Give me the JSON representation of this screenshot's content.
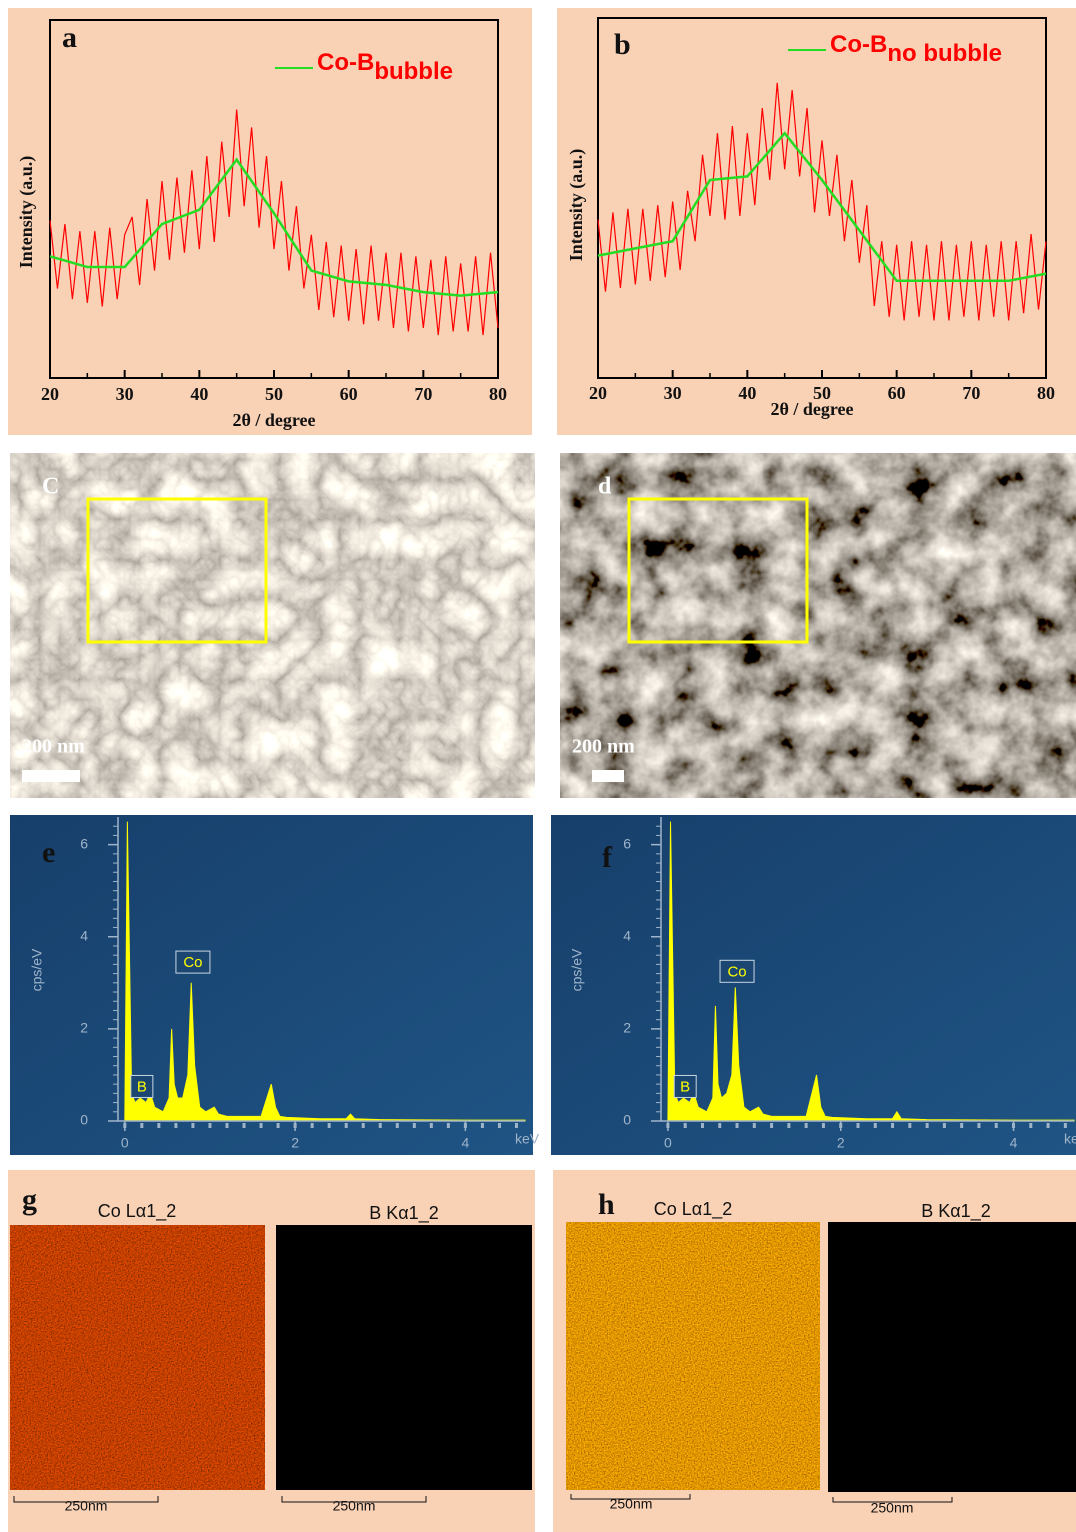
{
  "chart_data": [
    {
      "type": "line",
      "panel_label": "a",
      "x_label": "2θ / degree",
      "y_label": "Intensity (a.u.)",
      "xlim": [
        20,
        80
      ],
      "xticks": [
        20,
        30,
        40,
        50,
        60,
        70,
        80
      ],
      "ylim": [
        0,
        100
      ],
      "grid": false,
      "series": [
        {
          "color": "#ff0000",
          "x": [
            20,
            21,
            22,
            23,
            24,
            25,
            26,
            27,
            28,
            29,
            30,
            31,
            32,
            33,
            34,
            35,
            36,
            37,
            38,
            39,
            40,
            41,
            42,
            43,
            44,
            45,
            46,
            47,
            48,
            49,
            50,
            51,
            52,
            53,
            54,
            55,
            56,
            57,
            58,
            59,
            60,
            61,
            62,
            63,
            64,
            65,
            66,
            67,
            68,
            69,
            70,
            71,
            72,
            73,
            74,
            75,
            76,
            77,
            78,
            79,
            80
          ],
          "values": [
            44,
            25,
            43,
            22,
            41,
            21,
            41,
            20,
            42,
            22,
            40,
            45,
            26,
            50,
            30,
            55,
            33,
            56,
            35,
            58,
            36,
            62,
            38,
            66,
            45,
            75,
            48,
            70,
            42,
            62,
            36,
            55,
            30,
            48,
            25,
            40,
            19,
            38,
            17,
            37,
            16,
            36,
            15,
            37,
            16,
            35,
            14,
            35,
            13,
            34,
            14,
            33,
            12,
            34,
            13,
            32,
            13,
            34,
            12,
            35,
            14
          ]
        },
        {
          "name": "Co-B",
          "name_subscript": "bubble",
          "color": "#22dd22",
          "x": [
            20,
            25,
            30,
            35,
            40,
            45,
            50,
            55,
            60,
            65,
            70,
            75,
            80
          ],
          "values": [
            34,
            31,
            31,
            43,
            47,
            61,
            46,
            30,
            27,
            26,
            24,
            23,
            24
          ]
        }
      ]
    },
    {
      "type": "line",
      "panel_label": "b",
      "x_label": "2θ / degree",
      "y_label": "Intensity (a.u.)",
      "xlim": [
        20,
        80
      ],
      "xticks": [
        20,
        30,
        40,
        50,
        60,
        70,
        80
      ],
      "ylim": [
        0,
        100
      ],
      "grid": false,
      "series": [
        {
          "color": "#ff0000",
          "x": [
            20,
            21,
            22,
            23,
            24,
            25,
            26,
            27,
            28,
            29,
            30,
            31,
            32,
            33,
            34,
            35,
            36,
            37,
            38,
            39,
            40,
            41,
            42,
            43,
            44,
            45,
            46,
            47,
            48,
            49,
            50,
            51,
            52,
            53,
            54,
            55,
            56,
            57,
            58,
            59,
            60,
            61,
            62,
            63,
            64,
            65,
            66,
            67,
            68,
            69,
            70,
            71,
            72,
            73,
            74,
            75,
            76,
            77,
            78,
            79,
            80
          ],
          "values": [
            44,
            24,
            46,
            25,
            47,
            26,
            47,
            27,
            48,
            28,
            49,
            30,
            52,
            38,
            62,
            45,
            68,
            44,
            70,
            45,
            68,
            48,
            75,
            55,
            82,
            58,
            80,
            56,
            75,
            46,
            66,
            45,
            62,
            38,
            55,
            32,
            48,
            20,
            38,
            17,
            37,
            16,
            38,
            17,
            37,
            16,
            38,
            16,
            37,
            17,
            38,
            16,
            37,
            17,
            38,
            16,
            38,
            18,
            40,
            19,
            38
          ]
        },
        {
          "name": "Co-B",
          "name_subscript": "no bubble",
          "color": "#22dd22",
          "x": [
            20,
            25,
            30,
            35,
            40,
            45,
            50,
            55,
            60,
            65,
            70,
            75,
            80
          ],
          "values": [
            34,
            36,
            38,
            55,
            56,
            68,
            55,
            41,
            27,
            27,
            27,
            27,
            29
          ]
        }
      ]
    },
    {
      "type": "area",
      "panel_label": "e",
      "y_label": "cps/eV",
      "x_unit": "keV",
      "xlim": [
        -0.08,
        4.7
      ],
      "xticks": [
        0,
        2,
        4
      ],
      "ylim": [
        0,
        6.6
      ],
      "yticks": [
        0,
        2,
        4,
        6
      ],
      "grid": false,
      "color": "#ffff00",
      "x": [
        0,
        0.03,
        0.08,
        0.12,
        0.18,
        0.25,
        0.3,
        0.35,
        0.45,
        0.52,
        0.55,
        0.58,
        0.62,
        0.68,
        0.74,
        0.78,
        0.82,
        0.88,
        0.95,
        1.05,
        1.1,
        1.2,
        1.6,
        1.72,
        1.77,
        1.82,
        1.9,
        2.3,
        2.6,
        2.65,
        2.7,
        3.0,
        4.0,
        4.7
      ],
      "values": [
        0,
        6.5,
        0.6,
        0.4,
        0.5,
        0.4,
        0.6,
        0.3,
        0.2,
        0.5,
        2.0,
        0.8,
        0.5,
        0.5,
        1.0,
        3.0,
        1.2,
        0.3,
        0.2,
        0.3,
        0.15,
        0.1,
        0.1,
        0.8,
        0.3,
        0.1,
        0.08,
        0.05,
        0.05,
        0.15,
        0.05,
        0.03,
        0.02,
        0.02
      ],
      "annotations": [
        {
          "text": "Co",
          "x": 0.8,
          "y": 3.45
        },
        {
          "text": "B",
          "x": 0.2,
          "y": 0.75
        }
      ]
    },
    {
      "type": "area",
      "panel_label": "f",
      "y_label": "cps/eV",
      "x_unit": "keV",
      "xlim": [
        -0.08,
        4.7
      ],
      "xticks": [
        0,
        2,
        4
      ],
      "ylim": [
        0,
        6.6
      ],
      "yticks": [
        0,
        2,
        4,
        6
      ],
      "grid": false,
      "color": "#ffff00",
      "x": [
        0,
        0.03,
        0.08,
        0.12,
        0.18,
        0.25,
        0.3,
        0.35,
        0.45,
        0.52,
        0.55,
        0.58,
        0.62,
        0.68,
        0.74,
        0.78,
        0.82,
        0.88,
        0.95,
        1.05,
        1.1,
        1.2,
        1.6,
        1.72,
        1.77,
        1.82,
        1.9,
        2.3,
        2.6,
        2.65,
        2.7,
        3.0,
        4.0,
        4.7
      ],
      "values": [
        0,
        6.5,
        0.6,
        0.4,
        0.5,
        0.4,
        0.6,
        0.3,
        0.2,
        0.5,
        2.5,
        0.8,
        0.5,
        0.6,
        1.0,
        2.9,
        1.2,
        0.3,
        0.2,
        0.3,
        0.15,
        0.1,
        0.1,
        1.0,
        0.3,
        0.1,
        0.08,
        0.05,
        0.05,
        0.2,
        0.05,
        0.03,
        0.02,
        0.02
      ],
      "annotations": [
        {
          "text": "Co",
          "x": 0.8,
          "y": 3.25
        },
        {
          "text": "B",
          "x": 0.2,
          "y": 0.75
        }
      ]
    }
  ],
  "sem_images": [
    {
      "panel_label": "C",
      "scale_label": "200 nm"
    },
    {
      "panel_label": "d",
      "scale_label": "200 nm"
    }
  ],
  "elemental_maps": [
    {
      "panel_label": "g",
      "maps": [
        {
          "title": "Co Lα1_2",
          "scale_label": "250nm"
        },
        {
          "title": "B Kα1_2",
          "scale_label": "250nm"
        }
      ]
    },
    {
      "panel_label": "h",
      "maps": [
        {
          "title": "Co Lα1_2",
          "scale_label": "250nm"
        },
        {
          "title": "B Kα1_2",
          "scale_label": "250nm"
        }
      ]
    }
  ]
}
